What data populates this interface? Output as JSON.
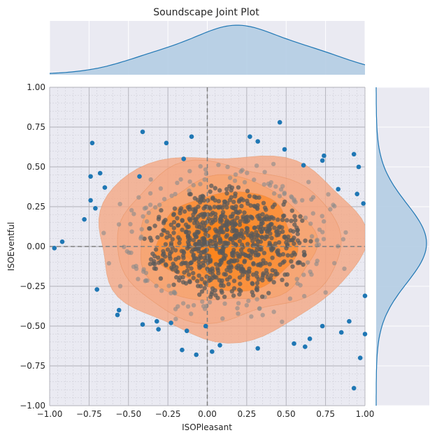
{
  "chart_data": {
    "type": "scatter",
    "title": "Soundscape Joint Plot",
    "xlabel": "ISOPleasant",
    "ylabel": "ISOEventful",
    "xlim": [
      -1.0,
      1.0
    ],
    "ylim": [
      -1.0,
      1.0
    ],
    "x_ticks": [
      "−1.00",
      "−0.75",
      "−0.50",
      "−0.25",
      "0.00",
      "0.25",
      "0.50",
      "0.75",
      "1.00"
    ],
    "y_ticks": [
      "−1.00",
      "−0.75",
      "−0.50",
      "−0.25",
      "0.00",
      "0.25",
      "0.50",
      "0.75",
      "1.00"
    ],
    "tick_values": [
      -1.0,
      -0.75,
      -0.5,
      -0.25,
      0.0,
      0.25,
      0.5,
      0.75,
      1.0
    ],
    "grid": true,
    "minor_grid": true,
    "reference_lines": {
      "x": 0.0,
      "y": 0.0,
      "style": "dashed"
    },
    "colors": {
      "points": "#1f77b4",
      "density_outer": "#f4a582",
      "density_inner": "#ff7f0e",
      "core_points": "#555555",
      "marginal_fill": "#b4cde3",
      "marginal_line": "#1f77b4",
      "axes_bg": "#eaeaf2"
    },
    "points": [
      [
        -0.97,
        -0.01
      ],
      [
        -0.92,
        0.03
      ],
      [
        -0.78,
        0.17
      ],
      [
        -0.74,
        0.29
      ],
      [
        -0.74,
        0.44
      ],
      [
        -0.73,
        0.65
      ],
      [
        -0.71,
        0.24
      ],
      [
        -0.7,
        -0.27
      ],
      [
        -0.68,
        0.46
      ],
      [
        -0.65,
        0.37
      ],
      [
        -0.57,
        -0.43
      ],
      [
        -0.56,
        -0.4
      ],
      [
        -0.43,
        0.44
      ],
      [
        -0.41,
        0.72
      ],
      [
        -0.41,
        -0.49
      ],
      [
        -0.32,
        -0.47
      ],
      [
        -0.31,
        -0.52
      ],
      [
        -0.26,
        0.65
      ],
      [
        -0.23,
        -0.48
      ],
      [
        -0.16,
        -0.65
      ],
      [
        -0.15,
        0.55
      ],
      [
        -0.13,
        -0.53
      ],
      [
        -0.1,
        0.69
      ],
      [
        -0.07,
        -0.68
      ],
      [
        -0.01,
        -0.5
      ],
      [
        0.03,
        -0.66
      ],
      [
        0.08,
        -0.62
      ],
      [
        0.27,
        0.69
      ],
      [
        0.32,
        0.66
      ],
      [
        0.32,
        -0.64
      ],
      [
        0.46,
        0.78
      ],
      [
        0.49,
        0.61
      ],
      [
        0.55,
        -0.61
      ],
      [
        0.61,
        0.51
      ],
      [
        0.62,
        -0.63
      ],
      [
        0.65,
        -0.58
      ],
      [
        0.73,
        0.54
      ],
      [
        0.73,
        -0.5
      ],
      [
        0.74,
        0.57
      ],
      [
        0.83,
        0.36
      ],
      [
        0.85,
        -0.54
      ],
      [
        0.9,
        -0.47
      ],
      [
        0.93,
        0.58
      ],
      [
        0.93,
        -0.89
      ],
      [
        0.95,
        0.33
      ],
      [
        0.96,
        0.5
      ],
      [
        0.97,
        -0.7
      ],
      [
        0.99,
        0.27
      ],
      [
        1.0,
        -0.55
      ],
      [
        1.0,
        -0.31
      ]
    ],
    "density_levels": [
      {
        "cx": 0.13,
        "cy": 0.02,
        "rx": 0.84,
        "ry": 0.58
      },
      {
        "cx": 0.12,
        "cy": 0.03,
        "rx": 0.71,
        "ry": 0.49
      },
      {
        "cx": 0.12,
        "cy": 0.03,
        "rx": 0.56,
        "ry": 0.39
      },
      {
        "cx": 0.13,
        "cy": 0.03,
        "rx": 0.44,
        "ry": 0.31
      },
      {
        "cx": 0.14,
        "cy": 0.03,
        "rx": 0.32,
        "ry": 0.23
      },
      {
        "cx": 0.14,
        "cy": 0.03,
        "rx": 0.2,
        "ry": 0.15
      }
    ],
    "marginal_x": {
      "mean": 0.2,
      "sd": 0.45
    },
    "marginal_y": {
      "mean": 0.02,
      "sd": 0.25
    }
  }
}
